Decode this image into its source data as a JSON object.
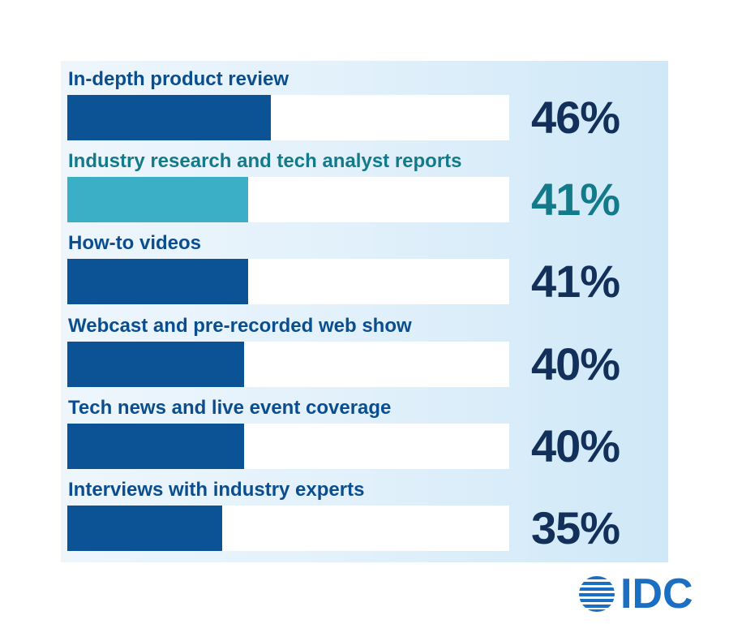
{
  "chart_data": {
    "type": "bar",
    "orientation": "horizontal",
    "categories": [
      "In-depth product review",
      "Industry research and tech analyst reports",
      "How-to videos",
      "Webcast and pre-recorded web show",
      "Tech news and live event coverage",
      "Interviews with industry experts"
    ],
    "values": [
      46,
      41,
      41,
      40,
      40,
      35
    ],
    "value_labels": [
      "46%",
      "41%",
      "41%",
      "40%",
      "40%",
      "35%"
    ],
    "highlight_index": 1,
    "xlim": [
      0,
      100
    ],
    "title": "",
    "xlabel": "",
    "ylabel": ""
  },
  "colors": {
    "bar": "#0b5395",
    "bar_highlight": "#3aafc6",
    "label": "#0a4e8f",
    "label_highlight": "#137a8a",
    "value": "#12305a",
    "value_highlight": "#137a8a",
    "logo": "#1a6fc2"
  },
  "logo": {
    "text": "IDC",
    "icon": "idc-globe-icon"
  }
}
